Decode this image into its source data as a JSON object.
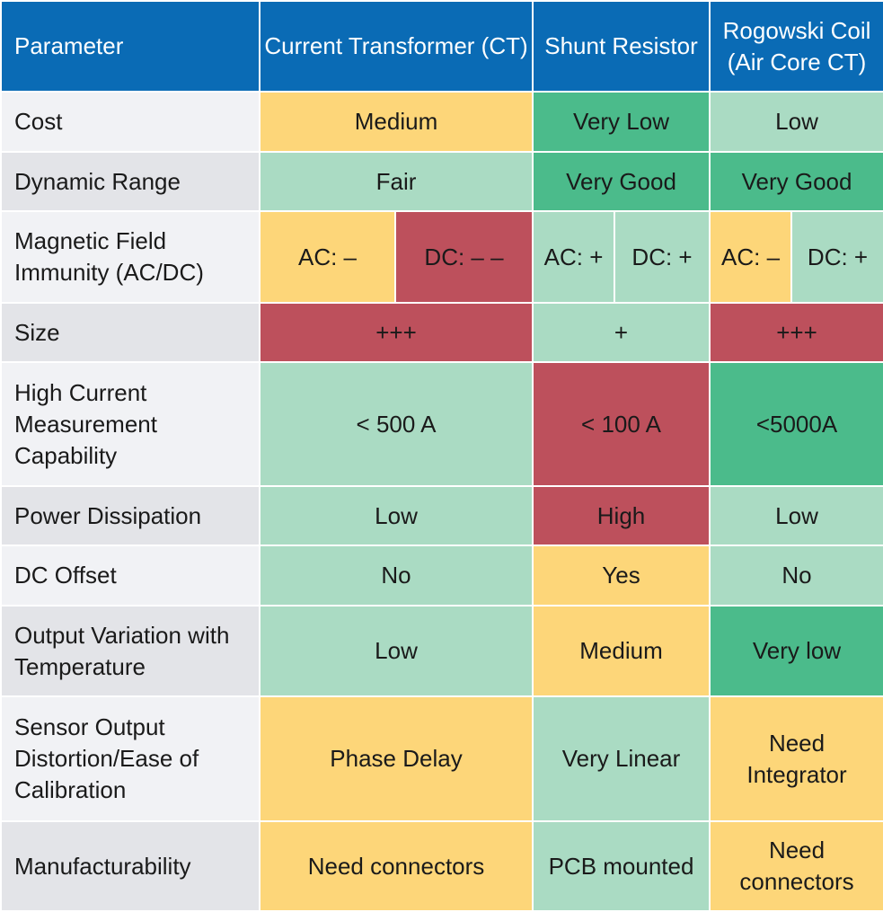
{
  "header": {
    "parameter": "Parameter",
    "ct": "Current Transformer (CT)",
    "shunt": "Shunt Resistor",
    "rogowski": "Rogowski Coil\n(Air Core CT)"
  },
  "rows": [
    {
      "param": "Cost",
      "ct": "Medium",
      "shunt": "Very Low",
      "rogowski": "Low"
    },
    {
      "param": "Dynamic Range",
      "ct": "Fair",
      "shunt": "Very Good",
      "rogowski": "Very Good"
    },
    {
      "param": "Magnetic Field\nImmunity (AC/DC)",
      "ct_ac": "AC: –",
      "ct_dc": "DC: – –",
      "shunt_ac": "AC: +",
      "shunt_dc": "DC: +",
      "rogowski_ac": "AC: –",
      "rogowski_dc": "DC: +"
    },
    {
      "param": "Size",
      "ct": "+++",
      "shunt": "+",
      "rogowski": "+++"
    },
    {
      "param": "High Current\nMeasurement\nCapability",
      "ct": "< 500 A",
      "shunt": "< 100 A",
      "rogowski": "<5000A"
    },
    {
      "param": "Power Dissipation",
      "ct": "Low",
      "shunt": "High",
      "rogowski": "Low"
    },
    {
      "param": "DC Offset",
      "ct": "No",
      "shunt": "Yes",
      "rogowski": "No"
    },
    {
      "param": "Output Variation with\nTemperature",
      "ct": "Low",
      "shunt": "Medium",
      "rogowski": "Very low"
    },
    {
      "param": "Sensor Output\nDistortion/Ease of\nCalibration",
      "ct": "Phase Delay",
      "shunt": "Very Linear",
      "rogowski": "Need\nIntegrator"
    },
    {
      "param": "Manufacturability",
      "ct": "Need connectors",
      "shunt": "PCB mounted",
      "rogowski": "Need\nconnectors"
    }
  ],
  "colors": {
    "header": "#0a6bb5",
    "yellow": "#fdd679",
    "light_green": "#aadbc3",
    "dark_green": "#4bbb8b",
    "red": "#bd505c"
  }
}
